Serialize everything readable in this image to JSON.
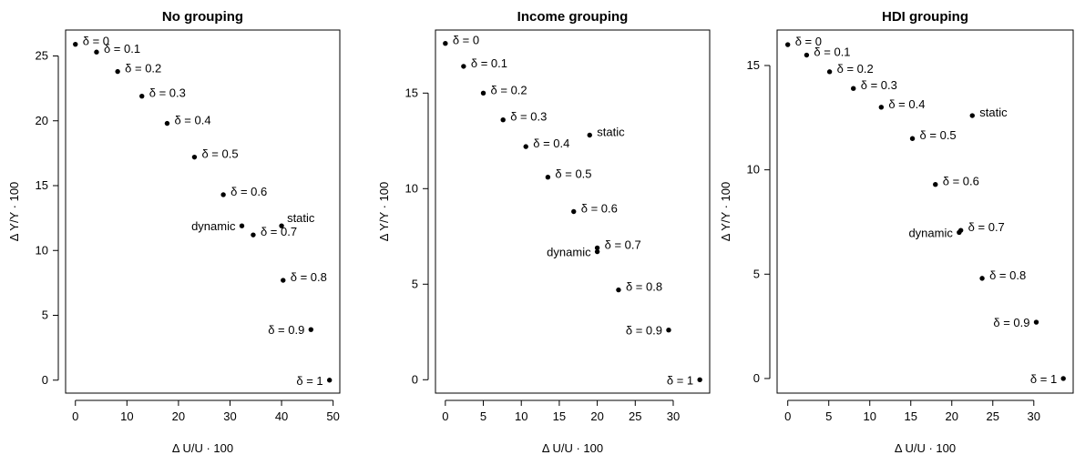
{
  "chart_data": [
    {
      "type": "scatter",
      "title": "No grouping",
      "xlabel": "Δ U/U · 100",
      "ylabel": "Δ Y/Y · 100",
      "xlim": [
        -1.9,
        51.3
      ],
      "ylim": [
        -1.0,
        27.0
      ],
      "xticks": [
        0,
        10,
        20,
        30,
        40,
        50
      ],
      "yticks": [
        0,
        5,
        10,
        15,
        20,
        25
      ],
      "grid": false,
      "points": [
        {
          "label": "δ = 0",
          "x": 0.0,
          "y": 25.9,
          "pos": "right"
        },
        {
          "label": "δ = 0.1",
          "x": 4.1,
          "y": 25.3,
          "pos": "right"
        },
        {
          "label": "δ = 0.2",
          "x": 8.2,
          "y": 23.8,
          "pos": "right"
        },
        {
          "label": "δ = 0.3",
          "x": 12.9,
          "y": 21.9,
          "pos": "right"
        },
        {
          "label": "δ = 0.4",
          "x": 17.8,
          "y": 19.8,
          "pos": "right"
        },
        {
          "label": "δ = 0.5",
          "x": 23.1,
          "y": 17.2,
          "pos": "right"
        },
        {
          "label": "δ = 0.6",
          "x": 28.7,
          "y": 14.3,
          "pos": "right"
        },
        {
          "label": "dynamic",
          "x": 32.3,
          "y": 11.9,
          "pos": "left"
        },
        {
          "label": "static",
          "x": 40.0,
          "y": 11.9,
          "pos": "above-right"
        },
        {
          "label": "δ = 0.7",
          "x": 34.5,
          "y": 11.2,
          "pos": "right"
        },
        {
          "label": "δ = 0.8",
          "x": 40.3,
          "y": 7.7,
          "pos": "right"
        },
        {
          "label": "δ = 0.9",
          "x": 45.7,
          "y": 3.9,
          "pos": "left"
        },
        {
          "label": "δ = 1",
          "x": 49.3,
          "y": 0.0,
          "pos": "left"
        }
      ]
    },
    {
      "type": "scatter",
      "title": "Income grouping",
      "xlabel": "Δ U/U · 100",
      "ylabel": "Δ Y/Y · 100",
      "xlim": [
        -1.3,
        34.8
      ],
      "ylim": [
        -0.7,
        18.3
      ],
      "xticks": [
        0,
        5,
        10,
        15,
        20,
        25,
        30
      ],
      "yticks": [
        0,
        5,
        10,
        15
      ],
      "grid": false,
      "points": [
        {
          "label": "δ = 0",
          "x": 0.0,
          "y": 17.6,
          "pos": "right"
        },
        {
          "label": "δ = 0.1",
          "x": 2.4,
          "y": 16.4,
          "pos": "right"
        },
        {
          "label": "δ = 0.2",
          "x": 5.0,
          "y": 15.0,
          "pos": "right"
        },
        {
          "label": "δ = 0.3",
          "x": 7.6,
          "y": 13.6,
          "pos": "right"
        },
        {
          "label": "δ = 0.4",
          "x": 10.6,
          "y": 12.2,
          "pos": "right"
        },
        {
          "label": "static",
          "x": 19.0,
          "y": 12.8,
          "pos": "right"
        },
        {
          "label": "δ = 0.5",
          "x": 13.5,
          "y": 10.6,
          "pos": "right"
        },
        {
          "label": "δ = 0.6",
          "x": 16.9,
          "y": 8.8,
          "pos": "right"
        },
        {
          "label": "δ = 0.7",
          "x": 20.0,
          "y": 6.9,
          "pos": "right"
        },
        {
          "label": "dynamic",
          "x": 20.0,
          "y": 6.7,
          "pos": "left"
        },
        {
          "label": "δ = 0.8",
          "x": 22.8,
          "y": 4.7,
          "pos": "right"
        },
        {
          "label": "δ = 0.9",
          "x": 29.4,
          "y": 2.6,
          "pos": "left"
        },
        {
          "label": "δ = 1",
          "x": 33.5,
          "y": 0.0,
          "pos": "left"
        }
      ]
    },
    {
      "type": "scatter",
      "title": "HDI grouping",
      "xlabel": "Δ U/U · 100",
      "ylabel": "Δ Y/Y · 100",
      "xlim": [
        -1.3,
        34.8
      ],
      "ylim": [
        -0.7,
        16.7
      ],
      "xticks": [
        0,
        5,
        10,
        15,
        20,
        25,
        30
      ],
      "yticks": [
        0,
        5,
        10,
        15
      ],
      "grid": false,
      "points": [
        {
          "label": "δ = 0",
          "x": 0.0,
          "y": 16.0,
          "pos": "right"
        },
        {
          "label": "δ = 0.1",
          "x": 2.3,
          "y": 15.5,
          "pos": "right"
        },
        {
          "label": "δ = 0.2",
          "x": 5.1,
          "y": 14.7,
          "pos": "right"
        },
        {
          "label": "δ = 0.3",
          "x": 8.0,
          "y": 13.9,
          "pos": "right"
        },
        {
          "label": "δ = 0.4",
          "x": 11.4,
          "y": 13.0,
          "pos": "right"
        },
        {
          "label": "static",
          "x": 22.5,
          "y": 12.6,
          "pos": "right"
        },
        {
          "label": "δ = 0.5",
          "x": 15.2,
          "y": 11.5,
          "pos": "right"
        },
        {
          "label": "δ = 0.6",
          "x": 18.0,
          "y": 9.3,
          "pos": "right"
        },
        {
          "label": "δ = 0.7",
          "x": 21.1,
          "y": 7.1,
          "pos": "right"
        },
        {
          "label": "dynamic",
          "x": 20.9,
          "y": 7.0,
          "pos": "left"
        },
        {
          "label": "δ = 0.8",
          "x": 23.7,
          "y": 4.8,
          "pos": "right"
        },
        {
          "label": "δ = 0.9",
          "x": 30.3,
          "y": 2.7,
          "pos": "left"
        },
        {
          "label": "δ = 1",
          "x": 33.6,
          "y": 0.0,
          "pos": "left"
        }
      ]
    }
  ]
}
